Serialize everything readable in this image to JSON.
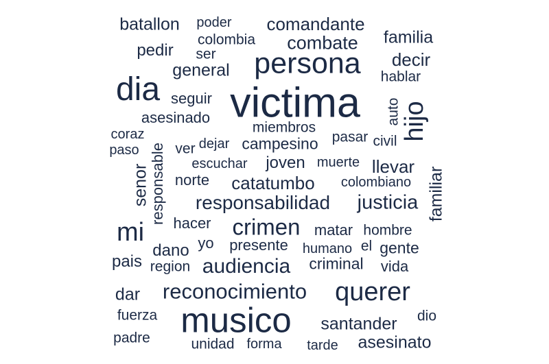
{
  "word_cloud": {
    "text_color": "#1c2a45",
    "words": [
      "batallon",
      "poder",
      "comandante",
      "colombia",
      "familia",
      "pedir",
      "ser",
      "combate",
      "persona",
      "decir",
      "general",
      "hablar",
      "dia",
      "victima",
      "seguir",
      "hijo",
      "auto",
      "asesinado",
      "miembros",
      "coraz",
      "pasar",
      "civil",
      "paso",
      "ver",
      "dejar",
      "campesino",
      "responsable",
      "escuchar",
      "joven",
      "muerte",
      "llevar",
      "senor",
      "familiar",
      "norte",
      "catatumbo",
      "colombiano",
      "responsabilidad",
      "justicia",
      "mi",
      "hacer",
      "crimen",
      "matar",
      "hombre",
      "dano",
      "yo",
      "presente",
      "humano",
      "el",
      "gente",
      "pais",
      "region",
      "audiencia",
      "criminal",
      "vida",
      "reconocimiento",
      "querer",
      "dar",
      "fuerza",
      "musico",
      "santander",
      "dio",
      "padre",
      "unidad",
      "forma",
      "tarde",
      "asesinato"
    ]
  }
}
